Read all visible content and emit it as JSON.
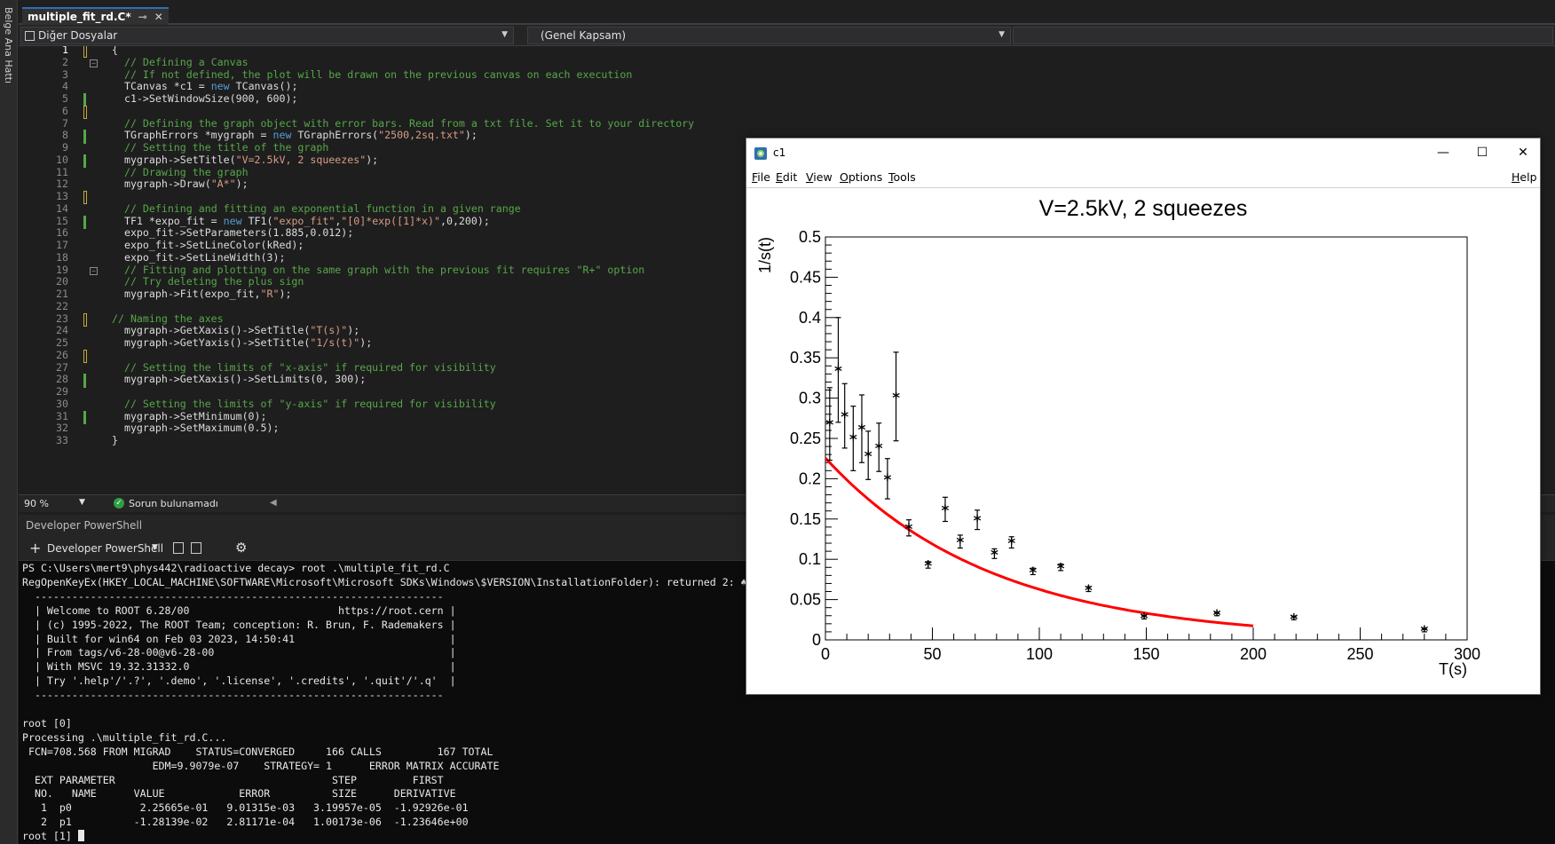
{
  "sidebar": {
    "vertical_label": "Belge Ana Hattı"
  },
  "tab": {
    "title": "multiple_fit_rd.C*",
    "pin_glyph": "⊸",
    "close_glyph": "✕"
  },
  "navbar": {
    "scope_left": "Diğer Dosyalar",
    "scope_right": "(Genel Kapsam)"
  },
  "editor": {
    "current_line": 1,
    "lines": [
      {
        "n": 1,
        "code": "{",
        "mark": "yellow",
        "fold": false
      },
      {
        "n": 2,
        "code": "  // Defining a Canvas",
        "mark": "",
        "fold": true
      },
      {
        "n": 3,
        "code": "  // If not defined, the plot will be drawn on the previous canvas on each execution",
        "mark": "",
        "fold": false
      },
      {
        "n": 4,
        "code": "  TCanvas *c1 = new TCanvas();",
        "mark": "",
        "fold": false
      },
      {
        "n": 5,
        "code": "  c1->SetWindowSize(900, 600);",
        "mark": "green",
        "fold": false
      },
      {
        "n": 6,
        "code": "",
        "mark": "yellow",
        "fold": false
      },
      {
        "n": 7,
        "code": "  // Defining the graph object with error bars. Read from a txt file. Set it to your directory",
        "mark": "",
        "fold": false
      },
      {
        "n": 8,
        "code": "  TGraphErrors *mygraph = new TGraphErrors(\"2500,2sq.txt\");",
        "mark": "green",
        "fold": false
      },
      {
        "n": 9,
        "code": "  // Setting the title of the graph",
        "mark": "",
        "fold": false
      },
      {
        "n": 10,
        "code": "  mygraph->SetTitle(\"V=2.5kV, 2 squeezes\");",
        "mark": "green",
        "fold": false
      },
      {
        "n": 11,
        "code": "  // Drawing the graph",
        "mark": "",
        "fold": false
      },
      {
        "n": 12,
        "code": "  mygraph->Draw(\"A*\");",
        "mark": "",
        "fold": false
      },
      {
        "n": 13,
        "code": "",
        "mark": "yellow",
        "fold": false
      },
      {
        "n": 14,
        "code": "  // Defining and fitting an exponential function in a given range",
        "mark": "",
        "fold": false
      },
      {
        "n": 15,
        "code": "  TF1 *expo_fit = new TF1(\"expo_fit\",\"[0]*exp([1]*x)\",0,200);",
        "mark": "green",
        "fold": false
      },
      {
        "n": 16,
        "code": "  expo_fit->SetParameters(1.885,0.012);",
        "mark": "",
        "fold": false
      },
      {
        "n": 17,
        "code": "  expo_fit->SetLineColor(kRed);",
        "mark": "",
        "fold": false
      },
      {
        "n": 18,
        "code": "  expo_fit->SetLineWidth(3);",
        "mark": "",
        "fold": false
      },
      {
        "n": 19,
        "code": "  // Fitting and plotting on the same graph with the previous fit requires \"R+\" option",
        "mark": "",
        "fold": true
      },
      {
        "n": 20,
        "code": "  // Try deleting the plus sign",
        "mark": "",
        "fold": false
      },
      {
        "n": 21,
        "code": "  mygraph->Fit(expo_fit,\"R\");",
        "mark": "",
        "fold": false
      },
      {
        "n": 22,
        "code": "",
        "mark": "",
        "fold": false
      },
      {
        "n": 23,
        "code": "// Naming the axes",
        "mark": "yellow",
        "fold": false
      },
      {
        "n": 24,
        "code": "  mygraph->GetXaxis()->SetTitle(\"T(s)\");",
        "mark": "",
        "fold": false
      },
      {
        "n": 25,
        "code": "  mygraph->GetYaxis()->SetTitle(\"1/s(t)\");",
        "mark": "",
        "fold": false
      },
      {
        "n": 26,
        "code": "",
        "mark": "yellow",
        "fold": false
      },
      {
        "n": 27,
        "code": "  // Setting the limits of \"x-axis\" if required for visibility",
        "mark": "",
        "fold": false
      },
      {
        "n": 28,
        "code": "  mygraph->GetXaxis()->SetLimits(0, 300);",
        "mark": "green",
        "fold": false
      },
      {
        "n": 29,
        "code": "",
        "mark": "",
        "fold": false
      },
      {
        "n": 30,
        "code": "  // Setting the limits of \"y-axis\" if required for visibility",
        "mark": "",
        "fold": false
      },
      {
        "n": 31,
        "code": "  mygraph->SetMinimum(0);",
        "mark": "green",
        "fold": false
      },
      {
        "n": 32,
        "code": "  mygraph->SetMaximum(0.5);",
        "mark": "",
        "fold": false
      },
      {
        "n": 33,
        "code": "}",
        "mark": "",
        "fold": false
      }
    ]
  },
  "status": {
    "zoom": "90 %",
    "issues": "Sorun bulunamadı"
  },
  "terminal_panel": {
    "header": "Developer PowerShell",
    "tool_name": "Developer PowerShell"
  },
  "terminal": {
    "lines": [
      "PS C:\\Users\\mert9\\phys442\\radioactive decay> root .\\multiple_fit_rd.C",
      "RegOpenKeyEx(HKEY_LOCAL_MACHINE\\SOFTWARE\\Microsoft\\Microsoft SDKs\\Windows\\$VERSION\\InstallationFolder): returned 2: ♠",
      "  ------------------------------------------------------------------",
      "  | Welcome to ROOT 6.28/00                        https://root.cern |",
      "  | (c) 1995-2022, The ROOT Team; conception: R. Brun, F. Rademakers |",
      "  | Built for win64 on Feb 03 2023, 14:50:41                         |",
      "  | From tags/v6-28-00@v6-28-00                                      |",
      "  | With MSVC 19.32.31332.0                                          |",
      "  | Try '.help'/'.?', '.demo', '.license', '.credits', '.quit'/'.q'  |",
      "  ------------------------------------------------------------------",
      "",
      "root [0]",
      "Processing .\\multiple_fit_rd.C...",
      " FCN=708.568 FROM MIGRAD    STATUS=CONVERGED     166 CALLS         167 TOTAL",
      "                     EDM=9.9079e-07    STRATEGY= 1      ERROR MATRIX ACCURATE",
      "  EXT PARAMETER                                   STEP         FIRST",
      "  NO.   NAME      VALUE            ERROR          SIZE      DERIVATIVE",
      "   1  p0           2.25665e-01   9.01315e-03   3.19957e-05  -1.92926e-01",
      "   2  p1          -1.28139e-02   2.81171e-04   1.00173e-06  -1.23646e+00",
      "root [1] "
    ]
  },
  "root_window": {
    "title": "c1",
    "controls": {
      "minimize": "—",
      "maximize": "☐",
      "close": "✕"
    },
    "menu": [
      {
        "label": "File",
        "u": "F",
        "rest": "ile"
      },
      {
        "label": "Edit",
        "u": "E",
        "rest": "dit"
      },
      {
        "label": "View",
        "u": "V",
        "rest": "iew"
      },
      {
        "label": "Options",
        "u": "O",
        "rest": "ptions"
      },
      {
        "label": "Tools",
        "u": "T",
        "rest": "ools"
      }
    ],
    "help": {
      "u": "H",
      "rest": "elp"
    }
  },
  "chart_data": {
    "type": "scatter",
    "title": "V=2.5kV, 2 squeezes",
    "xlabel": "T(s)",
    "ylabel": "1/s(t)",
    "xlim": [
      0,
      300
    ],
    "ylim": [
      0,
      0.5
    ],
    "xticks": [
      "0",
      "50",
      "100",
      "150",
      "200",
      "250",
      "300"
    ],
    "yticks": [
      "0",
      "0.05",
      "0.1",
      "0.15",
      "0.2",
      "0.25",
      "0.3",
      "0.35",
      "0.4",
      "0.45",
      "0.5"
    ],
    "marker_color": "#000000",
    "fit_color": "#ff0000",
    "points": [
      {
        "x": 2,
        "y": 0.268,
        "err": 0.045
      },
      {
        "x": 6,
        "y": 0.335,
        "err": 0.065
      },
      {
        "x": 9,
        "y": 0.278,
        "err": 0.04
      },
      {
        "x": 13,
        "y": 0.25,
        "err": 0.04
      },
      {
        "x": 17,
        "y": 0.262,
        "err": 0.042
      },
      {
        "x": 20,
        "y": 0.229,
        "err": 0.03
      },
      {
        "x": 25,
        "y": 0.239,
        "err": 0.03
      },
      {
        "x": 29,
        "y": 0.2,
        "err": 0.025
      },
      {
        "x": 33,
        "y": 0.302,
        "err": 0.055
      },
      {
        "x": 39,
        "y": 0.139,
        "err": 0.01
      },
      {
        "x": 48,
        "y": 0.093,
        "err": 0.004
      },
      {
        "x": 56,
        "y": 0.162,
        "err": 0.015
      },
      {
        "x": 63,
        "y": 0.122,
        "err": 0.008
      },
      {
        "x": 71,
        "y": 0.149,
        "err": 0.012
      },
      {
        "x": 79,
        "y": 0.107,
        "err": 0.006
      },
      {
        "x": 87,
        "y": 0.121,
        "err": 0.007
      },
      {
        "x": 97,
        "y": 0.085,
        "err": 0.004
      },
      {
        "x": 110,
        "y": 0.09,
        "err": 0.004
      },
      {
        "x": 123,
        "y": 0.063,
        "err": 0.003
      },
      {
        "x": 149,
        "y": 0.028,
        "err": 0.002
      },
      {
        "x": 183,
        "y": 0.032,
        "err": 0.002
      },
      {
        "x": 219,
        "y": 0.027,
        "err": 0.002
      },
      {
        "x": 280,
        "y": 0.012,
        "err": 0.002
      }
    ],
    "fit": {
      "name": "expo_fit",
      "p0": 0.225665,
      "p1": -0.0128139,
      "xmin": 0,
      "xmax": 200
    }
  }
}
